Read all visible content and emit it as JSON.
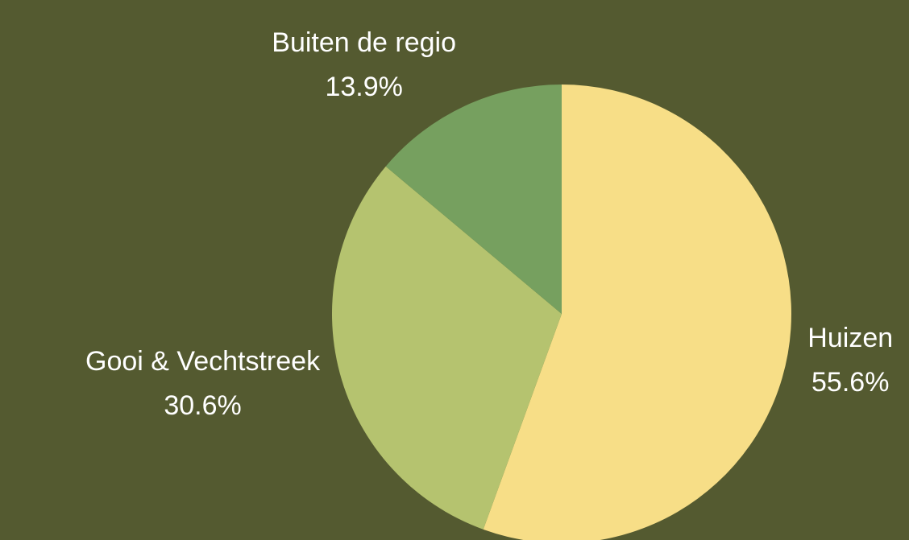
{
  "chart_data": {
    "type": "pie",
    "categories": [
      "Huizen",
      "Gooi & Vechtstreek",
      "Buiten de regio"
    ],
    "values": [
      55.6,
      30.6,
      13.9
    ],
    "value_labels": [
      "55.6%",
      "30.6%",
      "13.9%"
    ],
    "colors": [
      "#f7de87",
      "#b5c36f",
      "#76a05f"
    ]
  }
}
